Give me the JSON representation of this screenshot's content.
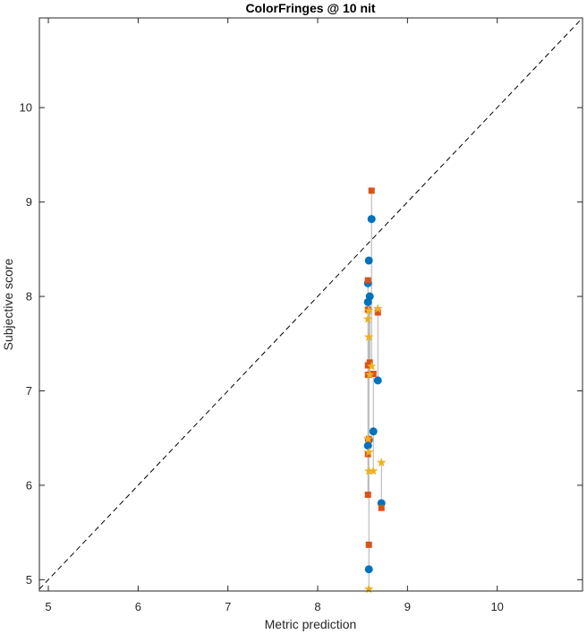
{
  "chart_data": {
    "type": "scatter",
    "title": "ColorFringes @ 10 nit",
    "xlabel": "Metric prediction",
    "ylabel": "Subjective score",
    "xlim": [
      4.9,
      10.95
    ],
    "ylim": [
      4.88,
      10.95
    ],
    "xticks": [
      5,
      6,
      7,
      8,
      9,
      10
    ],
    "yticks": [
      5,
      6,
      7,
      8,
      9,
      10
    ],
    "grid": false,
    "identity_line": {
      "style": "dashed",
      "color": "#000000"
    },
    "connector_color": "#b0b0b0",
    "series": [
      {
        "marker": "circle",
        "color": "#0072bd",
        "points": [
          {
            "x": 8.6,
            "y": 8.82
          },
          {
            "x": 8.57,
            "y": 8.38
          },
          {
            "x": 8.56,
            "y": 8.14
          },
          {
            "x": 8.58,
            "y": 8.0
          },
          {
            "x": 8.56,
            "y": 7.94
          },
          {
            "x": 8.67,
            "y": 7.11
          },
          {
            "x": 8.62,
            "y": 6.57
          },
          {
            "x": 8.57,
            "y": 6.48
          },
          {
            "x": 8.56,
            "y": 6.42
          },
          {
            "x": 8.71,
            "y": 5.81
          },
          {
            "x": 8.57,
            "y": 5.11
          }
        ]
      },
      {
        "marker": "square",
        "color": "#d95319",
        "points": [
          {
            "x": 8.6,
            "y": 9.12
          },
          {
            "x": 8.56,
            "y": 8.17
          },
          {
            "x": 8.56,
            "y": 7.86
          },
          {
            "x": 8.67,
            "y": 7.83
          },
          {
            "x": 8.58,
            "y": 7.3
          },
          {
            "x": 8.56,
            "y": 7.27
          },
          {
            "x": 8.56,
            "y": 7.17
          },
          {
            "x": 8.62,
            "y": 7.18
          },
          {
            "x": 8.57,
            "y": 6.49
          },
          {
            "x": 8.56,
            "y": 6.33
          },
          {
            "x": 8.56,
            "y": 5.9
          },
          {
            "x": 8.71,
            "y": 5.76
          },
          {
            "x": 8.57,
            "y": 5.37
          }
        ]
      },
      {
        "marker": "star",
        "color": "#edb120",
        "points": [
          {
            "x": 8.67,
            "y": 7.87
          },
          {
            "x": 8.57,
            "y": 7.85
          },
          {
            "x": 8.56,
            "y": 7.76
          },
          {
            "x": 8.57,
            "y": 7.57
          },
          {
            "x": 8.6,
            "y": 7.26
          },
          {
            "x": 8.58,
            "y": 7.17
          },
          {
            "x": 8.56,
            "y": 6.49
          },
          {
            "x": 8.57,
            "y": 6.35
          },
          {
            "x": 8.71,
            "y": 6.24
          },
          {
            "x": 8.57,
            "y": 6.15
          },
          {
            "x": 8.62,
            "y": 6.15
          },
          {
            "x": 8.57,
            "y": 4.9
          }
        ]
      }
    ],
    "connectors": [
      {
        "x": 8.56,
        "y1": 5.9,
        "y2": 8.17
      },
      {
        "x": 8.57,
        "y1": 4.9,
        "y2": 7.85
      },
      {
        "x": 8.58,
        "y1": 7.17,
        "y2": 8.0
      },
      {
        "x": 8.6,
        "y1": 7.26,
        "y2": 9.12
      },
      {
        "x": 8.62,
        "y1": 6.15,
        "y2": 7.18
      },
      {
        "x": 8.67,
        "y1": 7.11,
        "y2": 7.87
      },
      {
        "x": 8.71,
        "y1": 5.76,
        "y2": 6.24
      }
    ]
  }
}
